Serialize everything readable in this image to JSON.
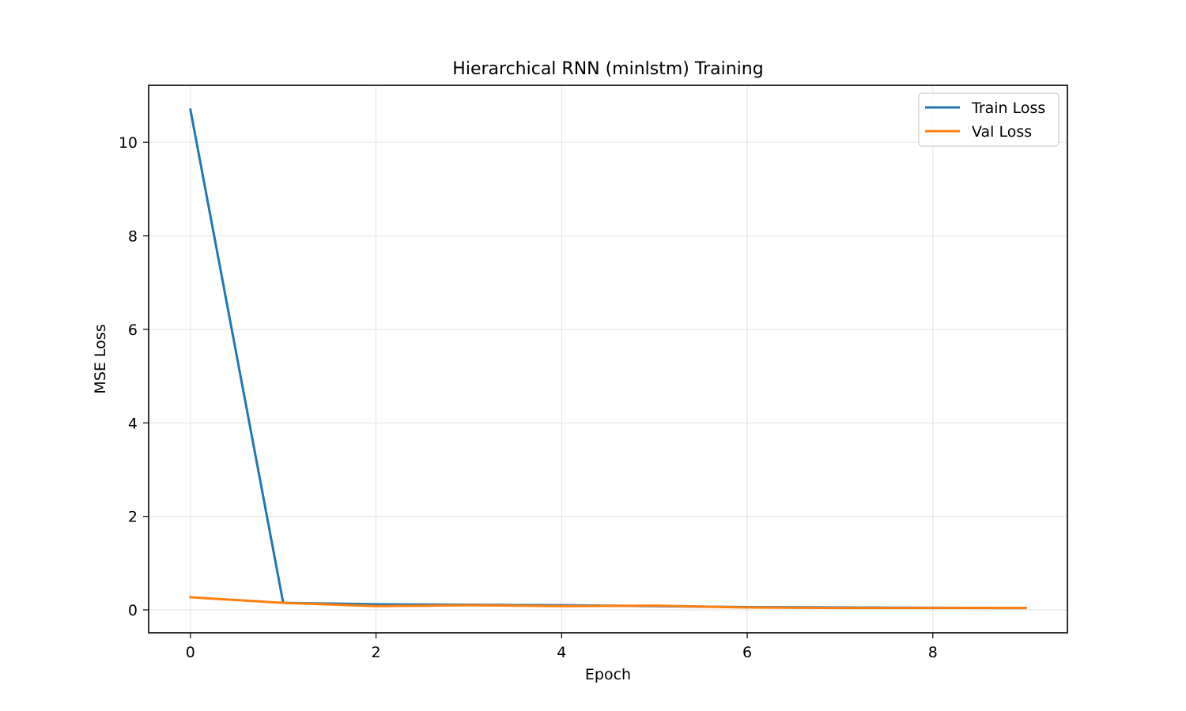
{
  "chart_data": {
    "type": "line",
    "title": "Hierarchical RNN (minlstm) Training",
    "xlabel": "Epoch",
    "ylabel": "MSE Loss",
    "x": [
      0,
      1,
      2,
      3,
      4,
      5,
      6,
      7,
      8,
      9
    ],
    "xlim": [
      -0.45,
      9.45
    ],
    "ylim": [
      -0.49,
      11.22
    ],
    "xticks": [
      0,
      2,
      4,
      6,
      8
    ],
    "yticks": [
      0,
      2,
      4,
      6,
      8,
      10
    ],
    "xtick_labels": [
      "0",
      "2",
      "4",
      "6",
      "8"
    ],
    "ytick_labels": [
      "0",
      "2",
      "4",
      "6",
      "8",
      "10"
    ],
    "grid": true,
    "legend_position": "top-right",
    "series": [
      {
        "name": "Train Loss",
        "color": "#1f77b4",
        "values": [
          10.7,
          0.15,
          0.12,
          0.11,
          0.1,
          0.08,
          0.06,
          0.05,
          0.045,
          0.04
        ]
      },
      {
        "name": "Val Loss",
        "color": "#ff7f0e",
        "values": [
          0.27,
          0.15,
          0.08,
          0.1,
          0.08,
          0.09,
          0.05,
          0.04,
          0.04,
          0.04
        ]
      }
    ]
  }
}
